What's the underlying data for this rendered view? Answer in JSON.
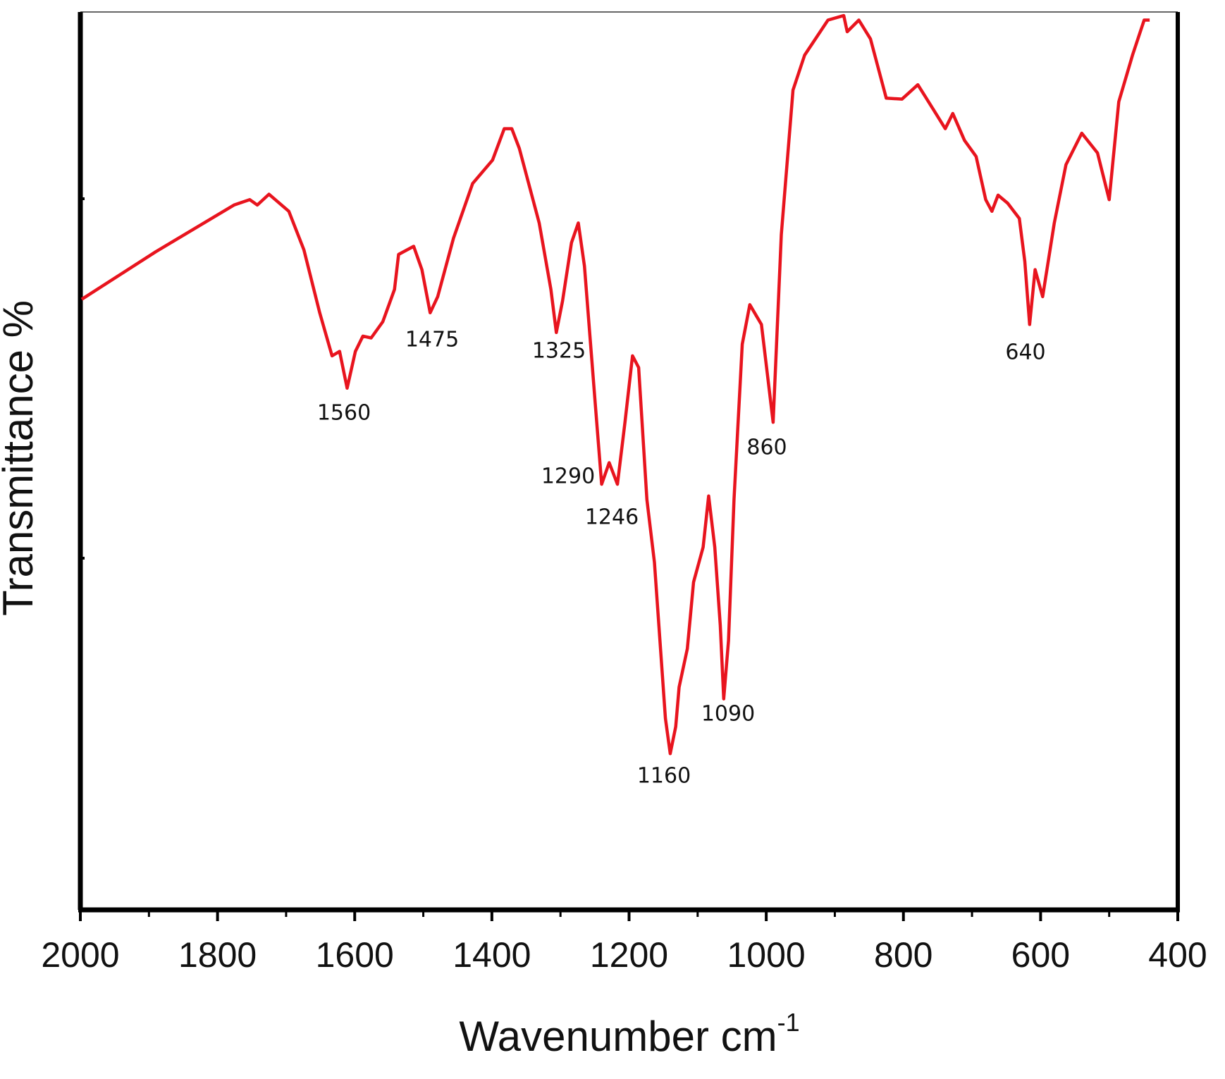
{
  "chart_data": {
    "type": "line",
    "xlabel": {
      "text": "Wavenumber cm",
      "superscript": "-1"
    },
    "ylabel": "Transmittance %",
    "xlim": [
      2000,
      400
    ],
    "xticks": [
      2000,
      1800,
      1600,
      1400,
      1200,
      1000,
      800,
      600,
      400
    ],
    "ylim": [
      0,
      100
    ],
    "color": "#e8141e",
    "x": [
      1998,
      1890,
      1776,
      1753,
      1742,
      1725,
      1696,
      1674,
      1651,
      1633,
      1622,
      1611,
      1599,
      1588,
      1576,
      1559,
      1542,
      1536,
      1514,
      1502,
      1490,
      1479,
      1456,
      1428,
      1399,
      1382,
      1371,
      1360,
      1331,
      1314,
      1306,
      1297,
      1284,
      1274,
      1265,
      1257,
      1249,
      1240,
      1229,
      1217,
      1206,
      1195,
      1186,
      1174,
      1163,
      1155,
      1147,
      1140,
      1132,
      1127,
      1115,
      1106,
      1092,
      1084,
      1075,
      1067,
      1062,
      1055,
      1047,
      1035,
      1024,
      1007,
      990,
      978,
      961,
      944,
      910,
      887,
      882,
      865,
      848,
      825,
      802,
      779,
      756,
      739,
      728,
      711,
      694,
      680,
      671,
      662,
      648,
      631,
      623,
      616,
      608,
      597,
      580,
      563,
      540,
      517,
      500,
      486,
      466,
      449,
      441
    ],
    "values": [
      68.0,
      73.3,
      78.5,
      79.1,
      78.5,
      79.7,
      77.8,
      73.5,
      66.5,
      61.7,
      62.2,
      58.1,
      62.2,
      63.9,
      63.7,
      65.5,
      69.1,
      73.0,
      73.9,
      71.3,
      66.5,
      68.3,
      74.8,
      80.9,
      83.5,
      87.0,
      87.0,
      84.8,
      76.5,
      69.1,
      64.3,
      67.8,
      74.3,
      76.5,
      71.7,
      63.9,
      56.1,
      47.4,
      49.8,
      47.4,
      54.3,
      61.7,
      60.4,
      45.7,
      38.7,
      30.0,
      21.3,
      17.4,
      20.4,
      24.8,
      29.1,
      36.5,
      40.4,
      46.1,
      40.4,
      31.7,
      23.5,
      30.0,
      45.7,
      63.0,
      67.4,
      65.2,
      54.3,
      75.2,
      91.3,
      95.2,
      99.1,
      99.6,
      97.8,
      99.1,
      97.0,
      90.4,
      90.3,
      91.9,
      89.1,
      87.0,
      88.7,
      85.7,
      83.9,
      79.1,
      77.8,
      79.6,
      78.7,
      77.0,
      72.2,
      65.2,
      71.3,
      68.3,
      76.5,
      83.0,
      86.5,
      84.3,
      79.1,
      90.0,
      95.2,
      99.1,
      99.1
    ],
    "annotations": [
      "1560",
      "1475",
      "1325",
      "1290",
      "1246",
      "1160",
      "1090",
      "860",
      "640"
    ]
  }
}
